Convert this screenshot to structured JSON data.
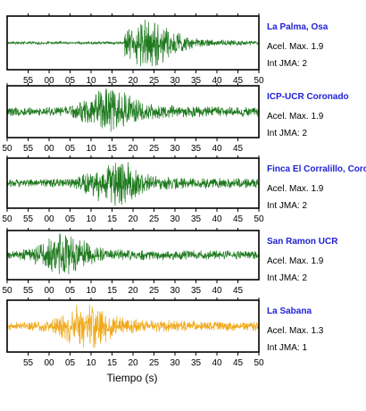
{
  "chart_data": {
    "type": "line",
    "xlabel": "Tiempo (s)",
    "panels": [
      {
        "station": "La Palma, Osa",
        "accel_label": "Acel. Max. 1.9",
        "jma_label": "Int JMA: 2",
        "color": "#1f7a1f",
        "onset": 28,
        "peak": 33,
        "amplitude": 0.9,
        "tick_labels": [
          "55",
          "00",
          "05",
          "10",
          "15",
          "20",
          "25",
          "30",
          "35",
          "40",
          "45",
          "50"
        ],
        "tick_values": [
          5,
          10,
          15,
          20,
          25,
          30,
          35,
          40,
          45,
          50,
          55,
          60
        ]
      },
      {
        "station": "ICP-UCR Coronado",
        "accel_label": "Acel. Max. 1.9",
        "jma_label": "Int JMA: 2",
        "color": "#1f7a1f",
        "onset": 0,
        "peak": 24,
        "amplitude": 0.95,
        "tick_labels": [
          "50",
          "55",
          "00",
          "05",
          "10",
          "15",
          "20",
          "25",
          "30",
          "35",
          "40",
          "45"
        ],
        "tick_values": [
          0,
          5,
          10,
          15,
          20,
          25,
          30,
          35,
          40,
          45,
          50,
          55
        ]
      },
      {
        "station": "Finca El Corralillo, Coronado",
        "accel_label": "Acel. Max. 1.9",
        "jma_label": "Int JMA: 2",
        "color": "#1f7a1f",
        "onset": 0,
        "peak": 25,
        "amplitude": 0.95,
        "tick_labels": [
          "50",
          "55",
          "00",
          "05",
          "10",
          "15",
          "20",
          "25",
          "30",
          "35",
          "40",
          "45",
          "50"
        ],
        "tick_values": [
          0,
          5,
          10,
          15,
          20,
          25,
          30,
          35,
          40,
          45,
          50,
          55,
          60
        ]
      },
      {
        "station": "San Ramon UCR",
        "accel_label": "Acel. Max. 1.9",
        "jma_label": "Int JMA: 2",
        "color": "#1f7a1f",
        "onset": 0,
        "peak": 13,
        "amplitude": 0.9,
        "tick_labels": [
          "50",
          "55",
          "00",
          "05",
          "10",
          "15",
          "20",
          "25",
          "30",
          "35",
          "40",
          "45"
        ],
        "tick_values": [
          0,
          5,
          10,
          15,
          20,
          25,
          30,
          35,
          40,
          45,
          50,
          55
        ]
      },
      {
        "station": "La Sabana",
        "accel_label": "Acel. Max. 1.3",
        "jma_label": "Int JMA: 1",
        "color": "#f0a818",
        "onset": 0,
        "peak": 18,
        "amplitude": 0.95,
        "tick_labels": [
          "55",
          "00",
          "05",
          "10",
          "15",
          "20",
          "25",
          "30",
          "35",
          "40",
          "45",
          "50"
        ],
        "tick_values": [
          5,
          10,
          15,
          20,
          25,
          30,
          35,
          40,
          45,
          50,
          55,
          60
        ]
      }
    ]
  }
}
